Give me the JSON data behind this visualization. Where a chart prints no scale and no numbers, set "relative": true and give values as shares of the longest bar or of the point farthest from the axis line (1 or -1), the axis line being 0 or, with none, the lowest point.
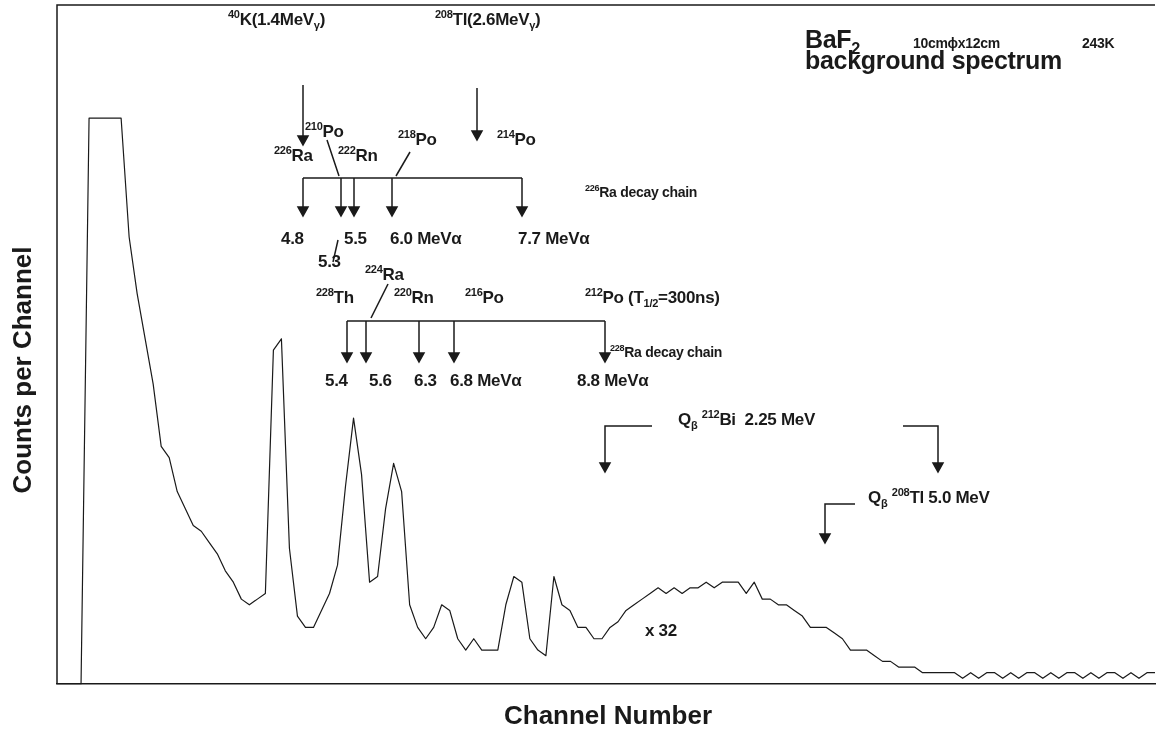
{
  "chart_data": {
    "type": "line",
    "relative": true,
    "marker": "none",
    "color": "#1a1a1a",
    "xlabel": "Channel Number",
    "ylabel": "Counts per Channel",
    "categories": [
      null,
      null,
      null,
      null,
      null,
      null,
      null,
      null,
      null,
      null,
      null,
      null,
      null,
      null,
      null,
      null,
      null,
      null,
      null,
      null,
      null,
      null,
      null,
      null,
      null,
      null,
      null,
      null,
      null,
      null,
      null,
      null,
      null,
      null,
      null,
      null,
      null,
      null,
      null,
      null,
      null,
      null,
      null,
      null,
      null,
      null,
      null,
      null,
      null,
      null,
      null,
      null,
      null,
      null,
      null,
      null,
      null,
      null,
      null,
      null,
      null,
      null,
      null,
      null,
      null,
      null,
      null,
      null,
      null,
      null,
      null,
      null,
      null,
      null,
      null,
      null,
      null,
      null,
      null,
      null,
      null,
      null,
      null,
      null,
      null,
      null,
      null,
      null,
      null,
      null,
      null,
      null,
      null,
      null,
      null,
      null,
      null,
      null,
      null,
      null,
      null,
      null,
      null,
      null,
      null,
      null,
      null,
      null,
      null,
      null,
      null,
      null,
      null,
      null,
      null,
      null,
      null,
      null,
      null,
      null,
      null,
      null,
      null,
      null,
      null,
      null,
      null,
      null,
      null,
      null,
      null,
      null,
      null,
      null,
      null,
      null,
      null,
      null
    ],
    "values": [
      0,
      0,
      0,
      0,
      1,
      1,
      1,
      1,
      1,
      0.79,
      0.69,
      0.61,
      0.53,
      0.42,
      0.4,
      0.34,
      0.31,
      0.28,
      0.27,
      0.25,
      0.23,
      0.2,
      0.18,
      0.15,
      0.14,
      0.15,
      0.16,
      0.59,
      0.61,
      0.24,
      0.12,
      0.1,
      0.1,
      0.13,
      0.16,
      0.21,
      0.35,
      0.47,
      0.37,
      0.18,
      0.19,
      0.31,
      0.39,
      0.34,
      0.14,
      0.1,
      0.08,
      0.1,
      0.14,
      0.13,
      0.08,
      0.06,
      0.08,
      0.06,
      0.06,
      0.06,
      0.14,
      0.19,
      0.18,
      0.08,
      0.06,
      0.05,
      0.19,
      0.14,
      0.13,
      0.1,
      0.1,
      0.08,
      0.08,
      0.1,
      0.11,
      0.13,
      0.14,
      0.15,
      0.16,
      0.17,
      0.16,
      0.17,
      0.16,
      0.17,
      0.17,
      0.18,
      0.17,
      0.18,
      0.18,
      0.18,
      0.16,
      0.18,
      0.15,
      0.15,
      0.14,
      0.14,
      0.13,
      0.12,
      0.1,
      0.1,
      0.1,
      0.09,
      0.08,
      0.06,
      0.06,
      0.06,
      0.05,
      0.04,
      0.04,
      0.03,
      0.03,
      0.03,
      0.02,
      0.02,
      0.02,
      0.02,
      0.02,
      0.01,
      0.02,
      0.01,
      0.02,
      0.02,
      0.01,
      0.02,
      0.01,
      0.02,
      0.02,
      0.01,
      0.02,
      0.01,
      0.02,
      0.02,
      0.01,
      0.02,
      0.01,
      0.02,
      0.02,
      0.01,
      0.02,
      0.01,
      0.02,
      0.02
    ],
    "annotations": [
      "$^{40}$K(1.4MeV$_{γ}$)",
      "$^{208}$Tl(2.6MeV$_{γ}$)",
      "BaF$_{2}$",
      "10cmϕx12cm",
      "243K",
      "background spectrum",
      "$^{210}$Po",
      "$^{226}$Ra",
      "$^{222}$Rn",
      "$^{218}$Po",
      "$^{214}$Po",
      "$^{226}$Ra decay chain",
      "4.8",
      "5.3",
      "5.5",
      "6.0 MeVα",
      "7.7 MeVα",
      "$^{228}$Th",
      "$^{224}$Ra",
      "$^{220}$Rn",
      "$^{216}$Po",
      "$^{212}$Po (T$_{1/2}$=300ns)",
      "$^{228}$Ra decay chain",
      "5.4",
      "5.6",
      "6.3",
      "6.8 MeVα",
      "8.8 MeVα",
      "Q$_{β}$ $^{212}$Bi  2.25 MeV",
      "Q$_{β}$ $^{208}$Tl 5.0 MeV",
      "x 32"
    ]
  }
}
